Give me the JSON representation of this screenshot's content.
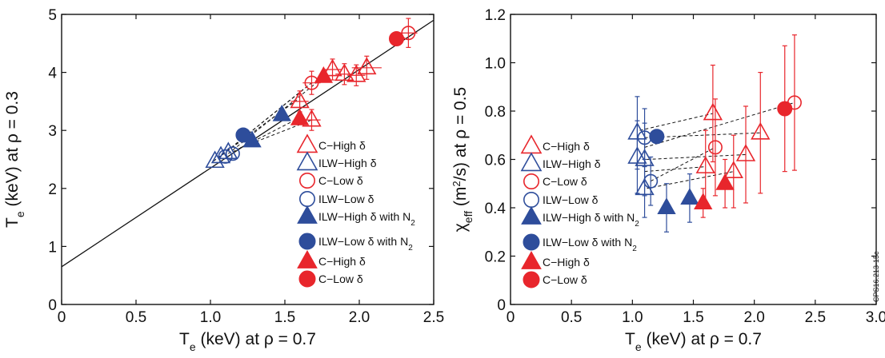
{
  "colors": {
    "red": "#e8262c",
    "blue": "#2e4d9b",
    "axis": "#111111"
  },
  "stamp": "CPS16.213-15c",
  "chart_data": [
    {
      "type": "scatter",
      "xlabel": "T_e (keV) at ρ = 0.7",
      "ylabel": "T_e (keV) at ρ = 0.3",
      "xlim": [
        0,
        2.5
      ],
      "ylim": [
        0,
        5
      ],
      "xticks": [
        "0",
        "0.5",
        "1.0",
        "1.5",
        "2.0",
        "2.5"
      ],
      "xtick_values": [
        0,
        0.5,
        1.0,
        1.5,
        2.0,
        2.5
      ],
      "yticks": [
        "0",
        "1",
        "2",
        "3",
        "4",
        "5"
      ],
      "ytick_values": [
        0,
        1,
        2,
        3,
        4,
        5
      ],
      "fit_line": {
        "x": [
          0,
          2.5
        ],
        "y": [
          0.65,
          4.9
        ]
      },
      "legend": [
        {
          "marker": "tri-open",
          "color": "red",
          "label": "C−High δ"
        },
        {
          "marker": "tri-open",
          "color": "blue",
          "label": "ILW−High δ"
        },
        {
          "marker": "circ-open",
          "color": "red",
          "label": "C−Low δ"
        },
        {
          "marker": "circ-open",
          "color": "blue",
          "label": "ILW−Low δ"
        },
        {
          "marker": "tri-filled",
          "color": "blue",
          "label": "ILW−High δ with N",
          "sub": "2"
        },
        {
          "marker": "circ-filled",
          "color": "blue",
          "label": "ILW−Low δ with N",
          "sub": "2"
        },
        {
          "marker": "tri-filled",
          "color": "red",
          "label": "C−High δ"
        },
        {
          "marker": "circ-filled",
          "color": "red",
          "label": "C−Low δ"
        }
      ],
      "dashed_links": [
        [
          [
            1.02,
            2.47
          ],
          [
            1.58,
            3.52
          ]
        ],
        [
          [
            1.05,
            2.52
          ],
          [
            1.63,
            3.72
          ]
        ],
        [
          [
            1.08,
            2.58
          ],
          [
            1.68,
            3.82
          ]
        ],
        [
          [
            1.12,
            2.6
          ],
          [
            1.76,
            3.92
          ]
        ],
        [
          [
            1.15,
            2.63
          ],
          [
            1.6,
            3.22
          ]
        ],
        [
          [
            1.2,
            2.7
          ],
          [
            1.68,
            3.18
          ]
        ]
      ],
      "points": [
        {
          "marker": "tri-open",
          "color": "red",
          "x": 1.6,
          "y": 3.5,
          "xerr": 0.06,
          "yerr": 0.18
        },
        {
          "marker": "tri-open",
          "color": "red",
          "x": 1.68,
          "y": 3.18,
          "xerr": 0.06,
          "yerr": 0.18
        },
        {
          "marker": "tri-open",
          "color": "red",
          "x": 1.82,
          "y": 4.05,
          "xerr": 0.06,
          "yerr": 0.18
        },
        {
          "marker": "tri-open",
          "color": "red",
          "x": 1.9,
          "y": 3.97,
          "xerr": 0.06,
          "yerr": 0.18
        },
        {
          "marker": "tri-open",
          "color": "red",
          "x": 1.98,
          "y": 3.95,
          "xerr": 0.06,
          "yerr": 0.18
        },
        {
          "marker": "tri-open",
          "color": "red",
          "x": 2.05,
          "y": 4.08,
          "xerr": 0.1,
          "yerr": 0.2
        },
        {
          "marker": "tri-open",
          "color": "blue",
          "x": 1.03,
          "y": 2.47
        },
        {
          "marker": "tri-open",
          "color": "blue",
          "x": 1.07,
          "y": 2.55
        },
        {
          "marker": "tri-open",
          "color": "blue",
          "x": 1.12,
          "y": 2.62
        },
        {
          "marker": "circ-open",
          "color": "red",
          "x": 1.68,
          "y": 3.82,
          "xerr": 0.06,
          "yerr": 0.2
        },
        {
          "marker": "circ-open",
          "color": "red",
          "x": 2.33,
          "y": 4.68,
          "xerr": 0.06,
          "yerr": 0.25
        },
        {
          "marker": "circ-open",
          "color": "blue",
          "x": 1.1,
          "y": 2.55
        },
        {
          "marker": "circ-open",
          "color": "blue",
          "x": 1.15,
          "y": 2.6
        },
        {
          "marker": "tri-filled",
          "color": "blue",
          "x": 1.28,
          "y": 2.82
        },
        {
          "marker": "tri-filled",
          "color": "blue",
          "x": 1.48,
          "y": 3.27
        },
        {
          "marker": "circ-filled",
          "color": "blue",
          "x": 1.22,
          "y": 2.92
        },
        {
          "marker": "tri-filled",
          "color": "red",
          "x": 1.6,
          "y": 3.2
        },
        {
          "marker": "tri-filled",
          "color": "red",
          "x": 1.76,
          "y": 3.93
        },
        {
          "marker": "circ-filled",
          "color": "red",
          "x": 2.25,
          "y": 4.58
        }
      ]
    },
    {
      "type": "scatter",
      "xlabel": "T_e (keV) at ρ = 0.7",
      "ylabel": "χ_eff (m²/s) at ρ = 0.5",
      "xlim": [
        0,
        3.0
      ],
      "ylim": [
        0,
        1.2
      ],
      "xticks": [
        "0",
        "0.5",
        "1.0",
        "1.5",
        "2.0",
        "2.5",
        "3.0"
      ],
      "xtick_values": [
        0,
        0.5,
        1.0,
        1.5,
        2.0,
        2.5,
        3.0
      ],
      "yticks": [
        "0",
        "0.2",
        "0.4",
        "0.6",
        "0.8",
        "1.0",
        "1.2"
      ],
      "ytick_values": [
        0,
        0.2,
        0.4,
        0.6,
        0.8,
        1.0,
        1.2
      ],
      "legend": [
        {
          "marker": "tri-open",
          "color": "red",
          "label": "C−High δ"
        },
        {
          "marker": "tri-open",
          "color": "blue",
          "label": "ILW−High δ"
        },
        {
          "marker": "circ-open",
          "color": "red",
          "label": "C−Low δ"
        },
        {
          "marker": "circ-open",
          "color": "blue",
          "label": "ILW−Low δ"
        },
        {
          "marker": "tri-filled",
          "color": "blue",
          "label": "ILW−High δ with N",
          "sub": "2"
        },
        {
          "marker": "circ-filled",
          "color": "blue",
          "label": "ILW−Low δ with N",
          "sub": "2"
        },
        {
          "marker": "tri-filled",
          "color": "red",
          "label": "C−High δ"
        },
        {
          "marker": "circ-filled",
          "color": "red",
          "label": "C−Low δ"
        }
      ],
      "dashed_links": [
        [
          [
            1.06,
            0.72
          ],
          [
            1.66,
            0.79
          ]
        ],
        [
          [
            1.1,
            0.69
          ],
          [
            2.05,
            0.71
          ]
        ],
        [
          [
            1.1,
            0.65
          ],
          [
            2.33,
            0.835
          ]
        ],
        [
          [
            1.12,
            0.6
          ],
          [
            1.93,
            0.62
          ]
        ],
        [
          [
            1.1,
            0.55
          ],
          [
            1.6,
            0.57
          ]
        ],
        [
          [
            1.12,
            0.48
          ],
          [
            1.83,
            0.55
          ]
        ],
        [
          [
            1.15,
            0.51
          ],
          [
            1.68,
            0.65
          ]
        ]
      ],
      "points": [
        {
          "marker": "tri-open",
          "color": "red",
          "x": 1.66,
          "y": 0.79,
          "yerr": 0.2
        },
        {
          "marker": "tri-open",
          "color": "red",
          "x": 2.05,
          "y": 0.71,
          "yerr": 0.25
        },
        {
          "marker": "tri-open",
          "color": "red",
          "x": 1.93,
          "y": 0.62,
          "yerr": 0.2
        },
        {
          "marker": "tri-open",
          "color": "red",
          "x": 1.6,
          "y": 0.57,
          "yerr": 0.15
        },
        {
          "marker": "tri-open",
          "color": "red",
          "x": 1.83,
          "y": 0.55,
          "yerr": 0.15
        },
        {
          "marker": "tri-open",
          "color": "blue",
          "x": 1.04,
          "y": 0.71,
          "yerr": 0.15
        },
        {
          "marker": "tri-open",
          "color": "blue",
          "x": 1.04,
          "y": 0.61,
          "yerr": 0.15
        },
        {
          "marker": "tri-open",
          "color": "blue",
          "x": 1.1,
          "y": 0.6,
          "yerr": 0.15
        },
        {
          "marker": "tri-open",
          "color": "blue",
          "x": 1.1,
          "y": 0.48,
          "yerr": 0.12
        },
        {
          "marker": "circ-open",
          "color": "red",
          "x": 1.68,
          "y": 0.65,
          "yerr": 0.2
        },
        {
          "marker": "circ-open",
          "color": "red",
          "x": 2.33,
          "y": 0.835,
          "yerr": 0.28
        },
        {
          "marker": "circ-open",
          "color": "blue",
          "x": 1.1,
          "y": 0.69,
          "yerr": 0.12
        },
        {
          "marker": "circ-open",
          "color": "blue",
          "x": 1.15,
          "y": 0.51,
          "yerr": 0.1
        },
        {
          "marker": "tri-filled",
          "color": "blue",
          "x": 1.28,
          "y": 0.4,
          "yerr": 0.1
        },
        {
          "marker": "tri-filled",
          "color": "blue",
          "x": 1.47,
          "y": 0.44,
          "yerr": 0.1
        },
        {
          "marker": "circ-filled",
          "color": "blue",
          "x": 1.2,
          "y": 0.695
        },
        {
          "marker": "tri-filled",
          "color": "red",
          "x": 1.58,
          "y": 0.42,
          "yerr": 0.06
        },
        {
          "marker": "tri-filled",
          "color": "red",
          "x": 1.76,
          "y": 0.5,
          "yerr": 0.1
        },
        {
          "marker": "circ-filled",
          "color": "red",
          "x": 2.25,
          "y": 0.81,
          "yerr": 0.26
        }
      ]
    }
  ]
}
